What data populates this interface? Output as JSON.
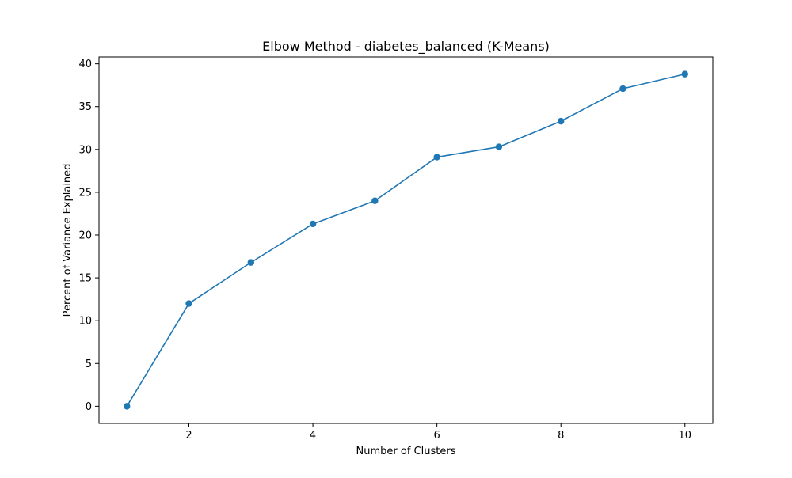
{
  "chart_data": {
    "type": "line",
    "title": "Elbow Method - diabetes_balanced (K-Means)",
    "xlabel": "Number of Clusters",
    "ylabel": "Percent of Variance Explained",
    "xlim": [
      0.55,
      10.45
    ],
    "ylim": [
      -2.0,
      40.8
    ],
    "x_ticks": [
      2,
      4,
      6,
      8,
      10
    ],
    "y_ticks": [
      0,
      5,
      10,
      15,
      20,
      25,
      30,
      35,
      40
    ],
    "grid": false,
    "legend": "none",
    "series": [
      {
        "x": [
          1,
          2,
          3,
          4,
          5,
          6,
          7,
          8,
          9,
          10
        ],
        "values": [
          0.0,
          12.0,
          16.8,
          21.3,
          24.0,
          29.1,
          30.3,
          33.3,
          37.1,
          38.8
        ],
        "color": "#1f77b4",
        "marker": "circle"
      }
    ]
  }
}
